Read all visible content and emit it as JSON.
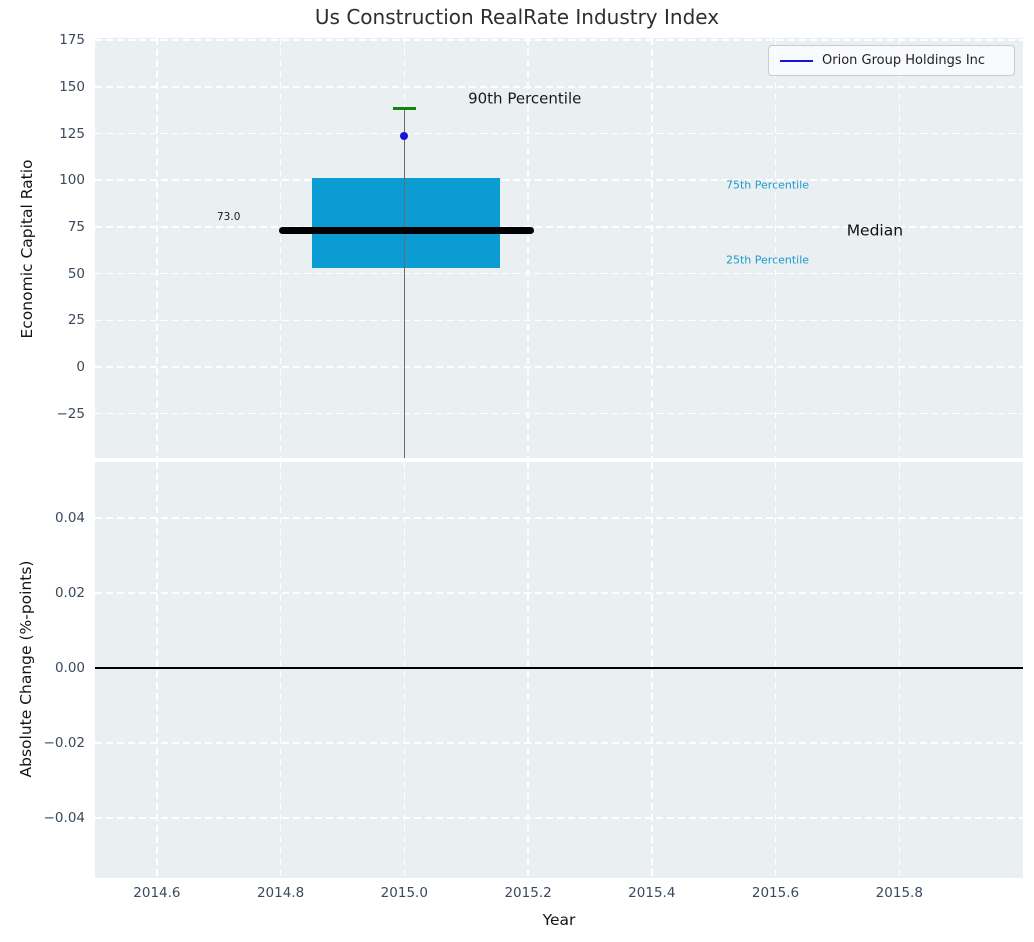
{
  "title": "Us Construction RealRate Industry Index",
  "legend": {
    "label": "Orion Group Holdings Inc",
    "line_color": "#1414dd",
    "position": "upper right"
  },
  "style": {
    "axes_bg": "#eaeff1",
    "grid_color": "#ffffff",
    "tick_color": "#3a4a5e",
    "figure_bg": "#ffffff"
  },
  "chart_data": [
    {
      "type": "box",
      "title": "Us Construction RealRate Industry Index",
      "xlabel": "Year",
      "ylabel": "Economic Capital Ratio",
      "xlim": [
        2014.5,
        2016.0
      ],
      "ylim": [
        -48.7,
        176.1
      ],
      "grid": "white dashed, on",
      "legend_position": "upper right",
      "xticks": [
        {
          "v": 2014.6,
          "label": "2014.6"
        },
        {
          "v": 2014.8,
          "label": "2014.8"
        },
        {
          "v": 2015.0,
          "label": "2015.0"
        },
        {
          "v": 2015.2,
          "label": "2015.2"
        },
        {
          "v": 2015.4,
          "label": "2015.4"
        },
        {
          "v": 2015.6,
          "label": "2015.6"
        },
        {
          "v": 2015.8,
          "label": "2015.8"
        }
      ],
      "x_tick_labels_visible": false,
      "yticks": [
        {
          "v": 175,
          "label": "175"
        },
        {
          "v": 150,
          "label": "150"
        },
        {
          "v": 125,
          "label": "125"
        },
        {
          "v": 100,
          "label": "100"
        },
        {
          "v": 75,
          "label": "75"
        },
        {
          "v": 50,
          "label": "50"
        },
        {
          "v": 25,
          "label": "25"
        },
        {
          "v": 0,
          "label": "0"
        },
        {
          "v": -25,
          "label": "−25"
        }
      ],
      "box": {
        "center_x": 2015.0,
        "q1": 53,
        "median": 73.0,
        "q3": 101,
        "p90": 138.5,
        "p10_clipped_below_axis": true,
        "box_x": [
          2014.85,
          2015.155
        ],
        "median_x": [
          2014.797,
          2015.21
        ],
        "cap_x": [
          2014.981,
          2015.019
        ],
        "box_color": "#0a9cd3",
        "median_color": "#000000",
        "whisker_color": "#6b6b6b",
        "cap_color": "#0b870b"
      },
      "point": {
        "series": "Orion Group Holdings Inc",
        "x": 2015.0,
        "y": 123.5,
        "color": "#1414dd"
      },
      "annotations": [
        {
          "text": "90th Percentile",
          "x": 2015.103,
          "y": 143.5,
          "color": "#1a1a1a",
          "size": 15,
          "align": "left"
        },
        {
          "text": "73.0",
          "x": 2014.735,
          "y": 80.5,
          "color": "#1a1a1a",
          "size": 10.5,
          "align": "right"
        },
        {
          "text": "75th Percentile",
          "x": 2015.52,
          "y": 97.5,
          "color": "#1b9bcd",
          "size": 11,
          "align": "left"
        },
        {
          "text": "Median",
          "x": 2015.715,
          "y": 73.0,
          "color": "#111111",
          "size": 15.5,
          "align": "left"
        },
        {
          "text": "25th Percentile",
          "x": 2015.52,
          "y": 57.5,
          "color": "#1b9bcd",
          "size": 11,
          "align": "left"
        }
      ]
    },
    {
      "type": "line",
      "xlabel": "Year",
      "ylabel": "Absolute Change (%-points)",
      "xlim": [
        2014.5,
        2016.0
      ],
      "ylim": [
        -0.056,
        0.0549
      ],
      "grid": "white dashed, on",
      "xticks": [
        {
          "v": 2014.6,
          "label": "2014.6"
        },
        {
          "v": 2014.8,
          "label": "2014.8"
        },
        {
          "v": 2015.0,
          "label": "2015.0"
        },
        {
          "v": 2015.2,
          "label": "2015.2"
        },
        {
          "v": 2015.4,
          "label": "2015.4"
        },
        {
          "v": 2015.6,
          "label": "2015.6"
        },
        {
          "v": 2015.8,
          "label": "2015.8"
        }
      ],
      "x_tick_labels_visible": true,
      "yticks": [
        {
          "v": 0.04,
          "label": "0.04"
        },
        {
          "v": 0.02,
          "label": "0.02"
        },
        {
          "v": 0.0,
          "label": "0.00"
        },
        {
          "v": -0.02,
          "label": "−0.02"
        },
        {
          "v": -0.04,
          "label": "−0.04"
        }
      ],
      "zero_line": {
        "y": 0.0,
        "color": "#000000"
      },
      "series": []
    }
  ]
}
